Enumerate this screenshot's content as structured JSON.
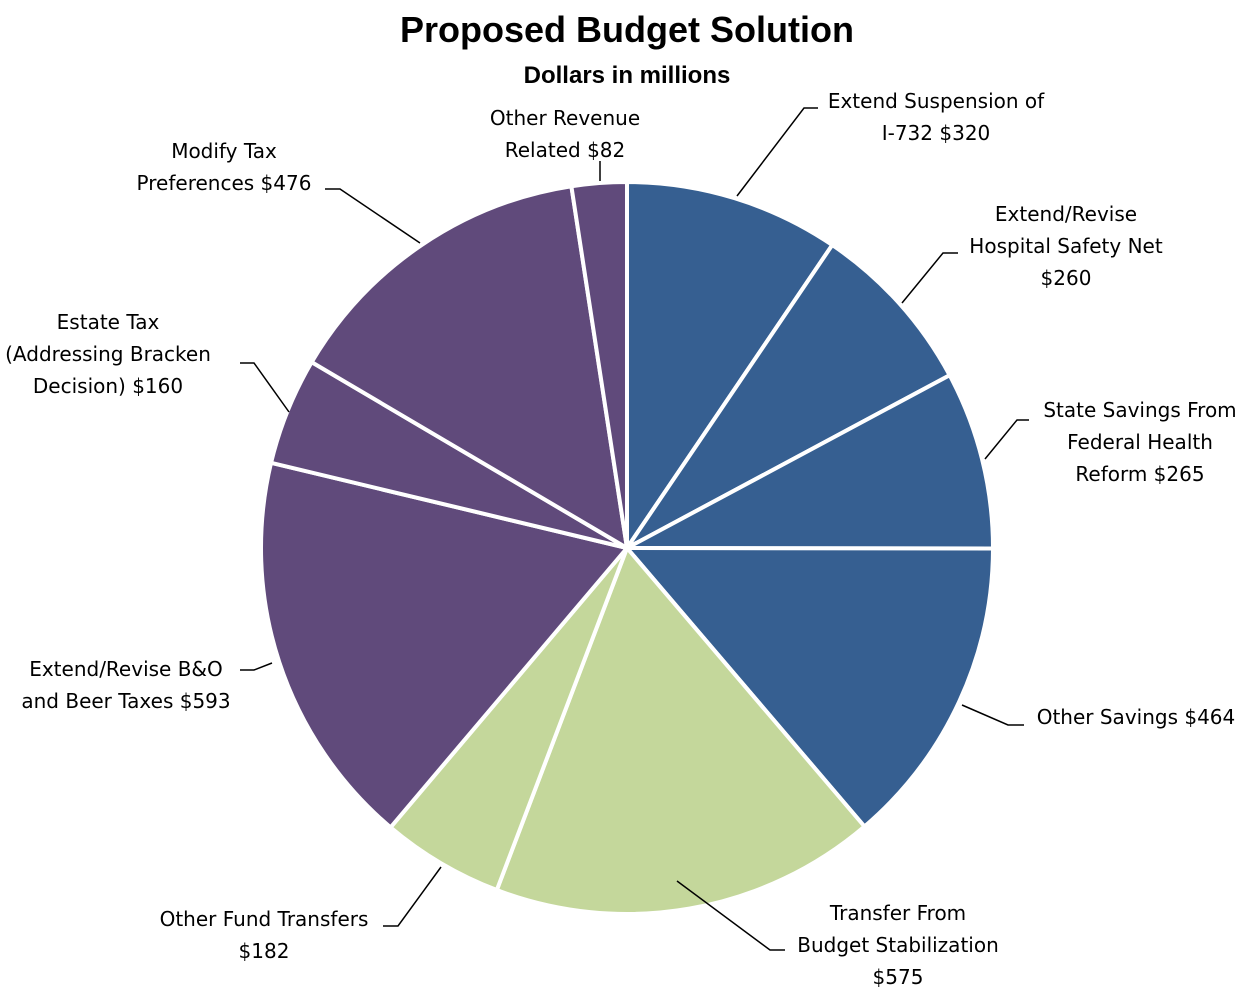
{
  "chart_data": {
    "type": "pie",
    "title": "Proposed Budget Solution",
    "subtitle": "Dollars in millions",
    "colors": {
      "savings": "#365F91",
      "transfers": "#C4D79B",
      "revenue": "#604A7B"
    },
    "slices": [
      {
        "label_lines": [
          "Extend Suspension of",
          "I-732  $320"
        ],
        "value": 320,
        "group": "savings"
      },
      {
        "label_lines": [
          "Extend/Revise",
          "Hospital Safety Net",
          "$260"
        ],
        "value": 260,
        "group": "savings"
      },
      {
        "label_lines": [
          "State Savings From",
          "Federal Health",
          "Reform  $265"
        ],
        "value": 265,
        "group": "savings"
      },
      {
        "label_lines": [
          "Other Savings  $464"
        ],
        "value": 464,
        "group": "savings"
      },
      {
        "label_lines": [
          "Transfer From",
          "Budget Stabilization",
          "$575"
        ],
        "value": 575,
        "group": "transfers"
      },
      {
        "label_lines": [
          "Other Fund Transfers",
          "$182"
        ],
        "value": 182,
        "group": "transfers"
      },
      {
        "label_lines": [
          "Extend/Revise B&O",
          "and Beer Taxes  $593"
        ],
        "value": 593,
        "group": "revenue"
      },
      {
        "label_lines": [
          "Estate Tax",
          "(Addressing Bracken",
          "Decision)  $160"
        ],
        "value": 160,
        "group": "revenue"
      },
      {
        "label_lines": [
          "Modify Tax",
          "Preferences  $476"
        ],
        "value": 476,
        "group": "revenue"
      },
      {
        "label_lines": [
          "Other Revenue",
          "Related  $82"
        ],
        "value": 82,
        "group": "revenue"
      }
    ]
  }
}
